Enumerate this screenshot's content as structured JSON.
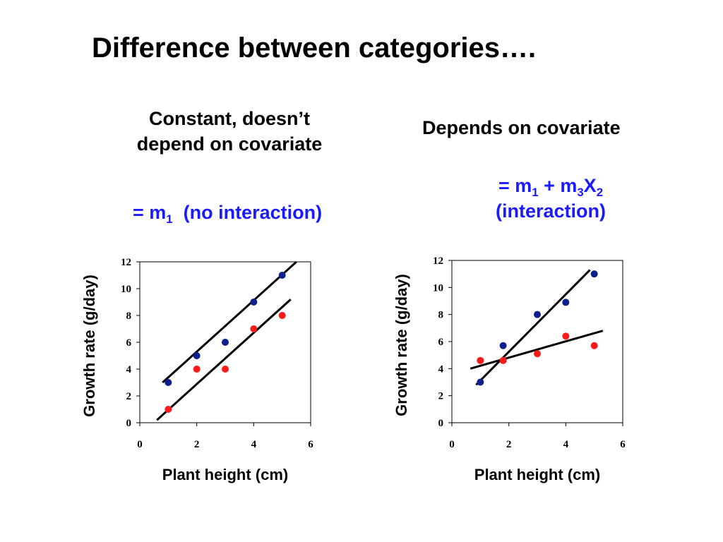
{
  "slide": {
    "title": "Difference between categories…."
  },
  "left_panel": {
    "heading_line1": "Constant, doesn’t",
    "heading_line2": "depend on covariate",
    "formula": {
      "prefix": "= m",
      "sub1": "1",
      "suffix": "  (no interaction)"
    }
  },
  "right_panel": {
    "heading": "Depends on covariate",
    "formula": {
      "prefix": "= m",
      "sub1": "1",
      "mid": " + m",
      "sub2": "3",
      "var": "X",
      "sub3": "2",
      "line2": "(interaction)"
    }
  },
  "colors": {
    "text_accent": "#1a1aff",
    "series_blue": "#0d1f8c",
    "series_red": "#ff1a1a",
    "fit_line": "#000000"
  },
  "chart_data": [
    {
      "type": "scatter",
      "title": "",
      "xlabel": "Plant height (cm)",
      "ylabel": "Growth rate (g/day)",
      "xlim": [
        0,
        6
      ],
      "ylim": [
        0,
        12
      ],
      "xticks": [
        0,
        2,
        4,
        6
      ],
      "yticks": [
        0,
        2,
        4,
        6,
        8,
        10,
        12
      ],
      "grid": false,
      "legend": "none",
      "series": [
        {
          "color": "#0d1f8c",
          "points": [
            [
              1,
              3
            ],
            [
              2,
              5
            ],
            [
              3,
              6
            ],
            [
              4,
              9
            ],
            [
              5,
              11
            ]
          ]
        },
        {
          "color": "#ff1a1a",
          "points": [
            [
              1,
              1
            ],
            [
              2,
              4
            ],
            [
              3,
              4
            ],
            [
              4,
              7
            ],
            [
              5,
              8
            ]
          ]
        }
      ],
      "lines": [
        {
          "color": "#000000",
          "from": [
            0.8,
            3.0
          ],
          "to": [
            5.5,
            12.0
          ]
        },
        {
          "color": "#000000",
          "from": [
            0.6,
            0.2
          ],
          "to": [
            5.3,
            9.2
          ]
        }
      ]
    },
    {
      "type": "scatter",
      "title": "",
      "xlabel": "Plant height (cm)",
      "ylabel": "Growth rate (g/day)",
      "xlim": [
        0,
        6
      ],
      "ylim": [
        0,
        12
      ],
      "xticks": [
        0,
        2,
        4,
        6
      ],
      "yticks": [
        0,
        2,
        4,
        6,
        8,
        10,
        12
      ],
      "grid": false,
      "legend": "none",
      "series": [
        {
          "color": "#0d1f8c",
          "points": [
            [
              1,
              3
            ],
            [
              1.8,
              5.7
            ],
            [
              3,
              8
            ],
            [
              4,
              8.9
            ],
            [
              5,
              11
            ]
          ]
        },
        {
          "color": "#ff1a1a",
          "points": [
            [
              1,
              4.6
            ],
            [
              1.8,
              4.6
            ],
            [
              3,
              5.1
            ],
            [
              4,
              6.4
            ],
            [
              5,
              5.7
            ]
          ]
        }
      ],
      "lines": [
        {
          "color": "#000000",
          "from": [
            0.85,
            2.8
          ],
          "to": [
            4.85,
            11.3
          ]
        },
        {
          "color": "#000000",
          "from": [
            0.65,
            4.0
          ],
          "to": [
            5.3,
            6.8
          ]
        }
      ]
    }
  ]
}
